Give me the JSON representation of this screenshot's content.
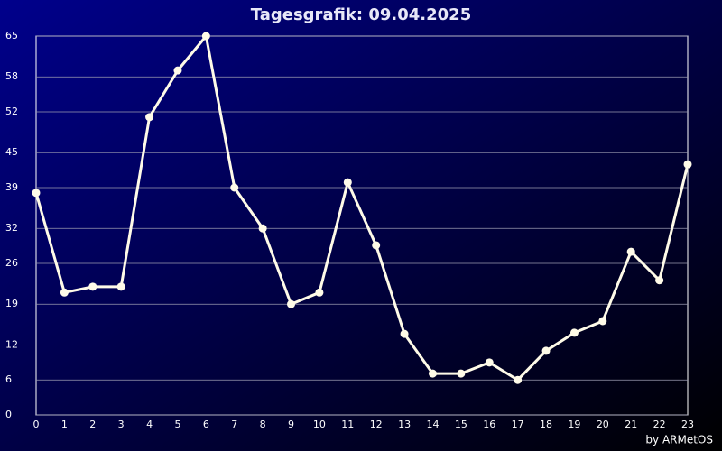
{
  "chart_data": {
    "type": "line",
    "title": "Tagesgrafik: 09.04.2025",
    "credit": "by ARMetOS",
    "categories": [
      "0",
      "1",
      "2",
      "3",
      "4",
      "5",
      "6",
      "7",
      "8",
      "9",
      "10",
      "11",
      "12",
      "13",
      "14",
      "15",
      "16",
      "17",
      "18",
      "19",
      "20",
      "21",
      "22",
      "23"
    ],
    "values": [
      38.1,
      21,
      22,
      22,
      51.1,
      59.1,
      65,
      39,
      32,
      19,
      21,
      39.9,
      29.1,
      13.9,
      7.1,
      7.1,
      9,
      6,
      11,
      14.1,
      16.1,
      28,
      23.1,
      43
    ],
    "color": "#fffbe8",
    "ylim": [
      0,
      65
    ],
    "yticks": [
      0,
      6,
      12,
      19,
      26,
      32,
      39,
      45,
      52,
      58,
      65
    ],
    "grid": true
  }
}
